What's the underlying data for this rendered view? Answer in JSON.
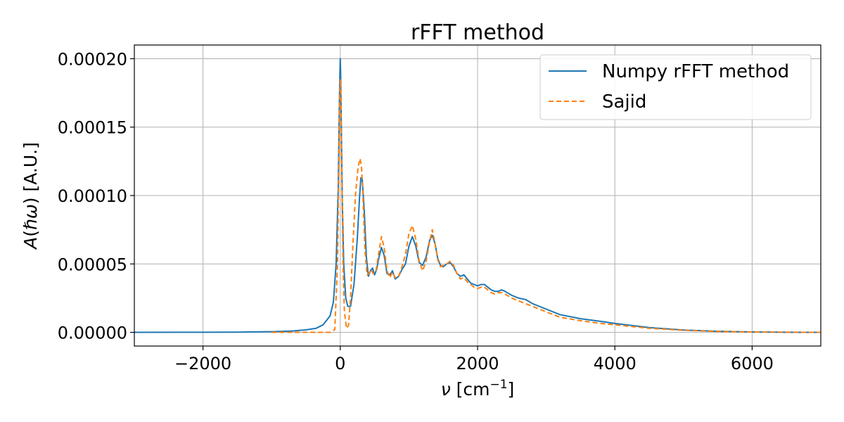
{
  "chart_data": {
    "type": "line",
    "title": "rFFT method",
    "xlabel": "ν [cm⁻¹]",
    "ylabel": "A(ℏω) [A.U.]",
    "xlim": [
      -3000,
      7000
    ],
    "ylim": [
      -1e-05,
      0.00021
    ],
    "xticks": [
      -2000,
      0,
      2000,
      4000,
      6000
    ],
    "xtick_labels": [
      "−2000",
      "0",
      "2000",
      "4000",
      "6000"
    ],
    "yticks": [
      0.0,
      5e-05,
      0.0001,
      0.00015,
      0.0002
    ],
    "ytick_labels": [
      "0.00000",
      "0.00005",
      "0.00010",
      "0.00015",
      "0.00020"
    ],
    "grid": true,
    "legend_position": "upper right",
    "series": [
      {
        "name": "Numpy rFFT method",
        "color": "#1f77b4",
        "style": "solid",
        "x": [
          -3000,
          -2000,
          -1500,
          -1000,
          -700,
          -500,
          -350,
          -250,
          -150,
          -100,
          -60,
          -30,
          -15,
          -5,
          0,
          5,
          15,
          30,
          50,
          80,
          110,
          150,
          200,
          250,
          280,
          300,
          320,
          350,
          380,
          410,
          440,
          470,
          500,
          530,
          560,
          600,
          640,
          680,
          720,
          760,
          800,
          850,
          900,
          950,
          1000,
          1050,
          1100,
          1150,
          1200,
          1250,
          1300,
          1340,
          1380,
          1420,
          1460,
          1500,
          1550,
          1600,
          1650,
          1700,
          1750,
          1800,
          1850,
          1900,
          1950,
          2000,
          2050,
          2100,
          2150,
          2200,
          2250,
          2300,
          2350,
          2400,
          2500,
          2600,
          2700,
          2800,
          3000,
          3200,
          3500,
          3800,
          4000,
          4500,
          5000,
          5500,
          6000,
          6500,
          7000
        ],
        "y": [
          0.0,
          1e-07,
          2e-07,
          5e-07,
          1e-06,
          1.8e-06,
          3e-06,
          5.5e-06,
          1.2e-05,
          2.2e-05,
          5e-05,
          0.000105,
          0.00016,
          0.00019,
          0.0002,
          0.00019,
          0.00015,
          9.5e-05,
          5e-05,
          2.5e-05,
          1.9e-05,
          1.9e-05,
          3.5e-05,
          7e-05,
          9.8e-05,
          0.000113,
          0.000112,
          8.8e-05,
          5.5e-05,
          4.1e-05,
          4.5e-05,
          4.7e-05,
          4.2e-05,
          4.6e-05,
          5.4e-05,
          6.2e-05,
          5.6e-05,
          4.3e-05,
          4.2e-05,
          4.5e-05,
          3.9e-05,
          4.1e-05,
          4.6e-05,
          5e-05,
          6.3e-05,
          7e-05,
          6.3e-05,
          5.1e-05,
          4.9e-05,
          5.5e-05,
          6.7e-05,
          7.1e-05,
          6.5e-05,
          5.4e-05,
          4.9e-05,
          4.8e-05,
          5e-05,
          5.1e-05,
          4.8e-05,
          4.3e-05,
          4.1e-05,
          4.2e-05,
          3.9e-05,
          3.6e-05,
          3.5e-05,
          3.4e-05,
          3.5e-05,
          3.5e-05,
          3.3e-05,
          3.1e-05,
          3e-05,
          3e-05,
          3.1e-05,
          3e-05,
          2.7e-05,
          2.5e-05,
          2.4e-05,
          2.1e-05,
          1.7e-05,
          1.3e-05,
          1e-05,
          8e-06,
          6.5e-06,
          3.5e-06,
          1.7e-06,
          8e-07,
          3e-07,
          1e-07,
          0.0
        ]
      },
      {
        "name": "Sajid",
        "color": "#ff7f0e",
        "style": "dashed",
        "x": [
          -1000,
          -500,
          -150,
          -80,
          -40,
          -20,
          -10,
          0,
          10,
          20,
          40,
          60,
          90,
          120,
          150,
          180,
          220,
          260,
          290,
          310,
          330,
          360,
          390,
          420,
          450,
          480,
          520,
          560,
          600,
          640,
          680,
          720,
          760,
          800,
          850,
          900,
          950,
          1000,
          1050,
          1100,
          1150,
          1200,
          1250,
          1300,
          1340,
          1380,
          1420,
          1460,
          1500,
          1550,
          1600,
          1650,
          1700,
          1750,
          1800,
          1850,
          1900,
          1950,
          2000,
          2050,
          2100,
          2150,
          2200,
          2250,
          2300,
          2350,
          2400,
          2500,
          2600,
          2700,
          2800,
          3000,
          3200,
          3500,
          3800,
          4000,
          4500,
          5000,
          5500,
          6000,
          6500,
          7000
        ],
        "y": [
          0.0,
          0.0,
          0.0,
          2e-06,
          5e-05,
          0.000125,
          0.00017,
          0.000185,
          0.00017,
          0.000125,
          5e-05,
          1.5e-05,
          3e-06,
          5e-06,
          2.5e-05,
          6e-05,
          0.0001,
          0.000121,
          0.000127,
          0.00012,
          0.0001,
          6e-05,
          4.2e-05,
          4.3e-05,
          4.6e-05,
          4.3e-05,
          4.5e-05,
          5.8e-05,
          7e-05,
          6.2e-05,
          4.5e-05,
          4e-05,
          4.4e-05,
          4e-05,
          4.1e-05,
          4.8e-05,
          5.7e-05,
          7.2e-05,
          7.8e-05,
          6.8e-05,
          5.2e-05,
          4.5e-05,
          5.2e-05,
          6.6e-05,
          7.5e-05,
          6.5e-05,
          5.3e-05,
          4.8e-05,
          4.9e-05,
          5e-05,
          5.2e-05,
          4.9e-05,
          4.3e-05,
          3.9e-05,
          4e-05,
          3.7e-05,
          3.5e-05,
          3.3e-05,
          3.2e-05,
          3.3e-05,
          3.3e-05,
          3.1e-05,
          2.9e-05,
          2.8e-05,
          2.9e-05,
          2.9e-05,
          2.8e-05,
          2.5e-05,
          2.3e-05,
          2.1e-05,
          1.9e-05,
          1.5e-05,
          1.1e-05,
          8.5e-06,
          6.5e-06,
          5.5e-06,
          3e-06,
          1.5e-06,
          7e-07,
          3e-07,
          1e-07,
          0.0
        ]
      }
    ]
  }
}
